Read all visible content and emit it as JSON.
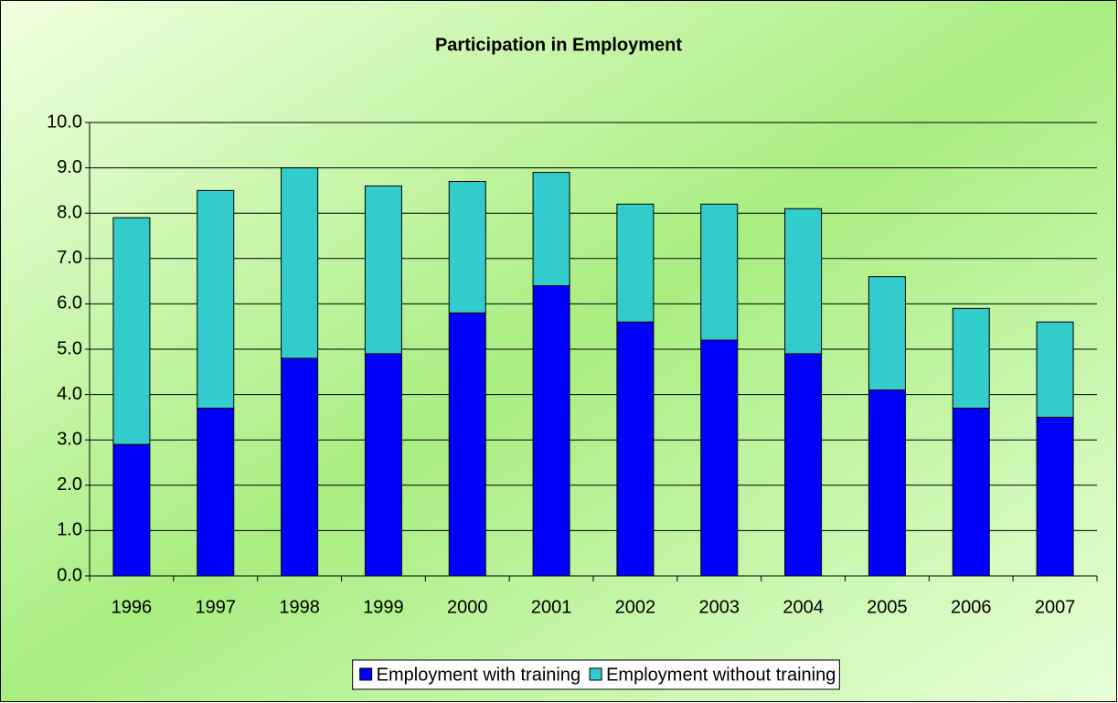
{
  "chart_data": {
    "type": "stacked_bar",
    "title": "Participation in Employment",
    "categories": [
      "1996",
      "1997",
      "1998",
      "1999",
      "2000",
      "2001",
      "2002",
      "2003",
      "2004",
      "2005",
      "2006",
      "2007"
    ],
    "series": [
      {
        "name": "Employment with training",
        "color": "#0000ff",
        "values": [
          2.9,
          3.7,
          4.8,
          4.9,
          5.8,
          6.4,
          5.6,
          5.2,
          4.9,
          4.1,
          3.7,
          3.5
        ]
      },
      {
        "name": "Employment without training",
        "color": "#33cccc",
        "values": [
          5.0,
          4.8,
          4.2,
          3.7,
          2.9,
          2.5,
          2.6,
          3.0,
          3.2,
          2.5,
          2.2,
          2.1
        ]
      }
    ],
    "ylim": [
      0,
      10
    ],
    "yticks": [
      {
        "value": 0,
        "label": "0.0"
      },
      {
        "value": 1,
        "label": "1.0"
      },
      {
        "value": 2,
        "label": "2.0"
      },
      {
        "value": 3,
        "label": "3.0"
      },
      {
        "value": 4,
        "label": "4.0"
      },
      {
        "value": 5,
        "label": "5.0"
      },
      {
        "value": 6,
        "label": "6.0"
      },
      {
        "value": 7,
        "label": "7.0"
      },
      {
        "value": 8,
        "label": "8.0"
      },
      {
        "value": 9,
        "label": "9.0"
      },
      {
        "value": 10,
        "label": "10.0"
      }
    ],
    "grid": true,
    "legend": "bottom"
  }
}
